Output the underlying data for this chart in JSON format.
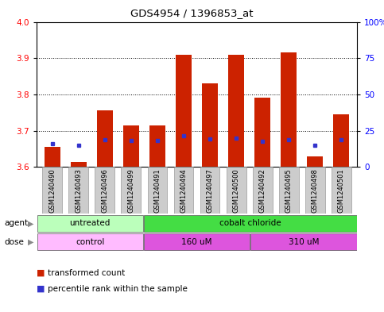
{
  "title": "GDS4954 / 1396853_at",
  "samples": [
    "GSM1240490",
    "GSM1240493",
    "GSM1240496",
    "GSM1240499",
    "GSM1240491",
    "GSM1240494",
    "GSM1240497",
    "GSM1240500",
    "GSM1240492",
    "GSM1240495",
    "GSM1240498",
    "GSM1240501"
  ],
  "bar_tops": [
    3.655,
    3.614,
    3.755,
    3.715,
    3.715,
    3.91,
    3.83,
    3.91,
    3.79,
    3.915,
    3.63,
    3.745
  ],
  "bar_bottoms": [
    3.6,
    3.6,
    3.6,
    3.6,
    3.6,
    3.6,
    3.6,
    3.6,
    3.6,
    3.6,
    3.6,
    3.6
  ],
  "blue_y": [
    3.665,
    3.66,
    3.675,
    3.672,
    3.673,
    3.685,
    3.678,
    3.68,
    3.67,
    3.676,
    3.66,
    3.675
  ],
  "ylim_left": [
    3.6,
    4.0
  ],
  "ylim_right": [
    0,
    100
  ],
  "yticks_left": [
    3.6,
    3.7,
    3.8,
    3.9,
    4.0
  ],
  "yticks_right": [
    0,
    25,
    50,
    75,
    100
  ],
  "ytick_labels_right": [
    "0",
    "25",
    "50",
    "75",
    "100%"
  ],
  "bar_color": "#cc2200",
  "blue_color": "#3333cc",
  "agent_groups": [
    {
      "label": "untreated",
      "start": 0,
      "end": 4,
      "color": "#bbffbb"
    },
    {
      "label": "cobalt chloride",
      "start": 4,
      "end": 12,
      "color": "#44dd44"
    }
  ],
  "dose_groups": [
    {
      "label": "control",
      "start": 0,
      "end": 4,
      "color": "#ffbbff"
    },
    {
      "label": "160 uM",
      "start": 4,
      "end": 8,
      "color": "#dd55dd"
    },
    {
      "label": "310 uM",
      "start": 8,
      "end": 12,
      "color": "#dd55dd"
    }
  ],
  "legend_items": [
    {
      "color": "#cc2200",
      "label": "transformed count"
    },
    {
      "color": "#3333cc",
      "label": "percentile rank within the sample"
    }
  ],
  "bg_color": "#ffffff",
  "plot_bg": "#ffffff",
  "sample_box_color": "#cccccc",
  "spine_color": "#000000"
}
